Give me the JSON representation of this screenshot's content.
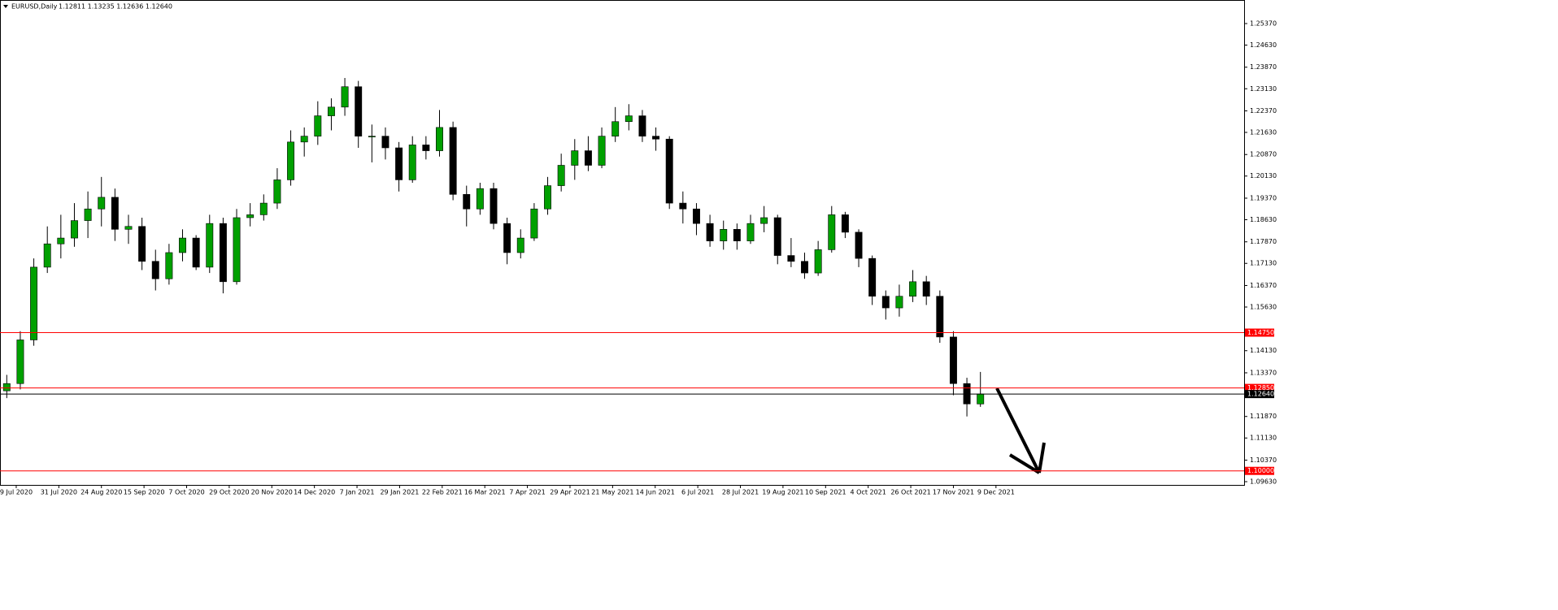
{
  "chart_data": {
    "type": "candlestick",
    "title": "EURUSD,Daily",
    "quote": "1.12811 1.13235 1.12636 1.12640",
    "up_color": "#00a000",
    "down_color": "#000000",
    "wick_color": "#000000",
    "xlim": [
      0,
      92
    ],
    "xticks": [
      {
        "value": 1.2,
        "label": "9 Jul 2020"
      },
      {
        "value": 4.35,
        "label": "31 Jul 2020"
      },
      {
        "value": 7.5,
        "label": "24 Aug 2020"
      },
      {
        "value": 10.65,
        "label": "15 Sep 2020"
      },
      {
        "value": 13.8,
        "label": "7 Oct 2020"
      },
      {
        "value": 16.95,
        "label": "29 Oct 2020"
      },
      {
        "value": 20.1,
        "label": "20 Nov 2020"
      },
      {
        "value": 23.25,
        "label": "14 Dec 2020"
      },
      {
        "value": 26.4,
        "label": "7 Jan 2021"
      },
      {
        "value": 29.55,
        "label": "29 Jan 2021"
      },
      {
        "value": 32.7,
        "label": "22 Feb 2021"
      },
      {
        "value": 35.85,
        "label": "16 Mar 2021"
      },
      {
        "value": 39.0,
        "label": "7 Apr 2021"
      },
      {
        "value": 42.15,
        "label": "29 Apr 2021"
      },
      {
        "value": 45.3,
        "label": "21 May 2021"
      },
      {
        "value": 48.45,
        "label": "14 Jun 2021"
      },
      {
        "value": 51.6,
        "label": "6 Jul 2021"
      },
      {
        "value": 54.75,
        "label": "28 Jul 2021"
      },
      {
        "value": 57.9,
        "label": "19 Aug 2021"
      },
      {
        "value": 61.05,
        "label": "10 Sep 2021"
      },
      {
        "value": 64.2,
        "label": "4 Oct 2021"
      },
      {
        "value": 67.35,
        "label": "26 Oct 2021"
      },
      {
        "value": 70.5,
        "label": "17 Nov 2021"
      },
      {
        "value": 73.65,
        "label": "9 Dec 2021"
      }
    ],
    "ylim": [
      1.09518,
      1.26179
    ],
    "yticks": [
      {
        "value": 1.2537,
        "label": "1.25370"
      },
      {
        "value": 1.2463,
        "label": "1.24630"
      },
      {
        "value": 1.2387,
        "label": "1.23870"
      },
      {
        "value": 1.2313,
        "label": "1.23130"
      },
      {
        "value": 1.2237,
        "label": "1.22370"
      },
      {
        "value": 1.2163,
        "label": "1.21630"
      },
      {
        "value": 1.2087,
        "label": "1.20870"
      },
      {
        "value": 1.2013,
        "label": "1.20130"
      },
      {
        "value": 1.1937,
        "label": "1.19370"
      },
      {
        "value": 1.1863,
        "label": "1.18630"
      },
      {
        "value": 1.1787,
        "label": "1.17870"
      },
      {
        "value": 1.1713,
        "label": "1.17130"
      },
      {
        "value": 1.1637,
        "label": "1.16370"
      },
      {
        "value": 1.1563,
        "label": "1.15630"
      },
      {
        "value": 1.1413,
        "label": "1.14130"
      },
      {
        "value": 1.1337,
        "label": "1.13370"
      },
      {
        "value": 1.1187,
        "label": "1.11870"
      },
      {
        "value": 1.1113,
        "label": "1.11130"
      },
      {
        "value": 1.1037,
        "label": "1.10370"
      },
      {
        "value": 1.0963,
        "label": "1.09630"
      }
    ],
    "levels": [
      {
        "value": 1.1475,
        "label": "1.14750",
        "color": "#ff0000"
      },
      {
        "value": 1.1285,
        "label": "1.12850",
        "color": "#ff0000"
      },
      {
        "value": 1.1,
        "label": "1.10000",
        "color": "#ff0000"
      }
    ],
    "last_price": {
      "value": 1.1264,
      "label": "1.12640",
      "color": "#000000"
    },
    "open": [
      1.1275,
      1.13,
      1.145,
      1.17,
      1.178,
      1.18,
      1.186,
      1.19,
      1.194,
      1.183,
      1.184,
      1.172,
      1.166,
      1.175,
      1.18,
      1.17,
      1.185,
      1.165,
      1.187,
      1.188,
      1.192,
      1.2,
      1.213,
      1.215,
      1.222,
      1.225,
      1.232,
      1.215,
      1.215,
      1.211,
      1.2,
      1.212,
      1.21,
      1.218,
      1.195,
      1.19,
      1.197,
      1.185,
      1.175,
      1.18,
      1.19,
      1.198,
      1.205,
      1.21,
      1.205,
      1.215,
      1.22,
      1.222,
      1.215,
      1.214,
      1.192,
      1.19,
      1.185,
      1.179,
      1.183,
      1.179,
      1.185,
      1.187,
      1.174,
      1.172,
      1.168,
      1.176,
      1.188,
      1.182,
      1.173,
      1.16,
      1.156,
      1.16,
      1.165,
      1.16,
      1.146,
      1.13,
      1.123
    ],
    "high": [
      1.133,
      1.148,
      1.173,
      1.184,
      1.188,
      1.192,
      1.196,
      1.201,
      1.197,
      1.188,
      1.187,
      1.176,
      1.178,
      1.183,
      1.181,
      1.188,
      1.187,
      1.19,
      1.192,
      1.195,
      1.204,
      1.217,
      1.218,
      1.227,
      1.228,
      1.235,
      1.234,
      1.219,
      1.218,
      1.213,
      1.215,
      1.215,
      1.224,
      1.22,
      1.198,
      1.199,
      1.199,
      1.187,
      1.183,
      1.192,
      1.201,
      1.209,
      1.214,
      1.215,
      1.218,
      1.225,
      1.226,
      1.224,
      1.218,
      1.215,
      1.196,
      1.192,
      1.188,
      1.186,
      1.185,
      1.188,
      1.191,
      1.188,
      1.18,
      1.175,
      1.179,
      1.191,
      1.189,
      1.183,
      1.174,
      1.162,
      1.164,
      1.169,
      1.167,
      1.162,
      1.148,
      1.132,
      1.134
    ],
    "low": [
      1.125,
      1.128,
      1.143,
      1.168,
      1.173,
      1.177,
      1.18,
      1.184,
      1.179,
      1.178,
      1.169,
      1.162,
      1.164,
      1.172,
      1.169,
      1.168,
      1.161,
      1.164,
      1.184,
      1.186,
      1.19,
      1.198,
      1.208,
      1.212,
      1.217,
      1.222,
      1.211,
      1.206,
      1.207,
      1.196,
      1.199,
      1.207,
      1.208,
      1.193,
      1.184,
      1.188,
      1.183,
      1.171,
      1.173,
      1.179,
      1.188,
      1.196,
      1.2,
      1.203,
      1.204,
      1.213,
      1.217,
      1.213,
      1.21,
      1.19,
      1.185,
      1.181,
      1.177,
      1.176,
      1.176,
      1.178,
      1.182,
      1.171,
      1.17,
      1.166,
      1.167,
      1.175,
      1.18,
      1.17,
      1.157,
      1.152,
      1.153,
      1.158,
      1.157,
      1.144,
      1.126,
      1.1187,
      1.122
    ],
    "close": [
      1.13,
      1.145,
      1.17,
      1.178,
      1.18,
      1.186,
      1.19,
      1.194,
      1.183,
      1.184,
      1.172,
      1.166,
      1.175,
      1.18,
      1.17,
      1.185,
      1.165,
      1.187,
      1.188,
      1.192,
      1.2,
      1.213,
      1.215,
      1.222,
      1.225,
      1.232,
      1.215,
      1.215,
      1.211,
      1.2,
      1.212,
      1.21,
      1.218,
      1.195,
      1.19,
      1.197,
      1.185,
      1.175,
      1.18,
      1.19,
      1.198,
      1.205,
      1.21,
      1.205,
      1.215,
      1.22,
      1.222,
      1.215,
      1.214,
      1.192,
      1.19,
      1.185,
      1.179,
      1.183,
      1.179,
      1.185,
      1.187,
      1.174,
      1.172,
      1.168,
      1.176,
      1.188,
      1.182,
      1.173,
      1.16,
      1.156,
      1.16,
      1.165,
      1.16,
      1.146,
      1.13,
      1.123,
      1.1264
    ]
  }
}
